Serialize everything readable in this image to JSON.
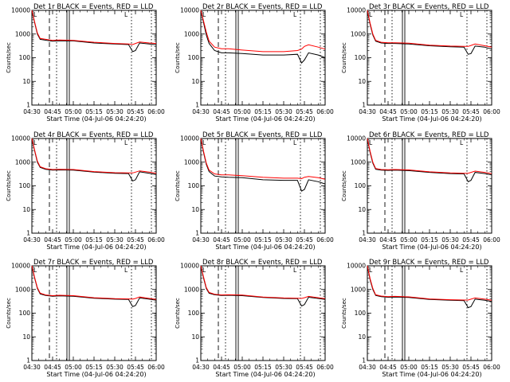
{
  "colors": {
    "events": "#000000",
    "lld": "#ff0000",
    "background": "#ffffff"
  },
  "chart_data": [
    {
      "type": "line",
      "title": "Det 1r BLACK = Events, RED = LLD",
      "xlabel": "Start Time (04-Jul-06 04:24:20)",
      "ylabel": "Counts/sec",
      "yscale": "log",
      "ylim": [
        1,
        10000
      ],
      "xlim": [
        "04:30",
        "06:00"
      ],
      "x_ticks": [
        "04:30",
        "04:45",
        "05:00",
        "05:15",
        "05:30",
        "05:45",
        "06:00"
      ],
      "y_ticks": [
        "1",
        "10",
        "100",
        "1000",
        "10000"
      ],
      "legend_marker": "L",
      "series": [
        {
          "name": "Events",
          "x": [
            "04:30",
            "04:32",
            "04:34",
            "04:36",
            "04:40",
            "04:45",
            "04:50",
            "05:00",
            "05:15",
            "05:30",
            "05:40",
            "05:43",
            "05:45",
            "05:48",
            "05:55",
            "06:00"
          ],
          "values": [
            10000,
            3000,
            1000,
            600,
            550,
            500,
            520,
            510,
            420,
            380,
            360,
            180,
            200,
            420,
            380,
            350
          ]
        },
        {
          "name": "LLD",
          "x": [
            "04:30",
            "04:32",
            "04:34",
            "04:36",
            "04:40",
            "04:45",
            "04:50",
            "05:00",
            "05:15",
            "05:30",
            "05:40",
            "05:43",
            "05:45",
            "05:48",
            "05:55",
            "06:00"
          ],
          "values": [
            10000,
            3200,
            1100,
            650,
            600,
            540,
            560,
            540,
            450,
            400,
            380,
            360,
            400,
            460,
            420,
            400
          ]
        }
      ]
    },
    {
      "type": "line",
      "title": "Det 2r BLACK = Events, RED = LLD",
      "xlabel": "Start Time (04-Jul-06 04:24:20)",
      "ylabel": "Counts/sec",
      "yscale": "log",
      "ylim": [
        1,
        10000
      ],
      "xlim": [
        "04:30",
        "06:00"
      ],
      "x_ticks": [
        "04:30",
        "04:45",
        "05:00",
        "05:15",
        "05:30",
        "05:45",
        "06:00"
      ],
      "y_ticks": [
        "1",
        "10",
        "100",
        "1000",
        "10000"
      ],
      "legend_marker": "L",
      "series": [
        {
          "name": "Events",
          "x": [
            "04:30",
            "04:32",
            "04:34",
            "04:36",
            "04:40",
            "04:45",
            "04:50",
            "05:00",
            "05:15",
            "05:30",
            "05:40",
            "05:43",
            "05:45",
            "05:48",
            "05:55",
            "06:00"
          ],
          "values": [
            10000,
            3000,
            900,
            400,
            200,
            160,
            160,
            150,
            130,
            130,
            140,
            60,
            80,
            160,
            130,
            100
          ]
        },
        {
          "name": "LLD",
          "x": [
            "04:30",
            "04:32",
            "04:34",
            "04:36",
            "04:40",
            "04:45",
            "04:50",
            "05:00",
            "05:15",
            "05:30",
            "05:40",
            "05:43",
            "05:45",
            "05:48",
            "05:55",
            "06:00"
          ],
          "values": [
            10000,
            3500,
            1200,
            500,
            280,
            240,
            240,
            210,
            180,
            180,
            200,
            230,
            300,
            350,
            280,
            230
          ]
        }
      ]
    },
    {
      "type": "line",
      "title": "Det 3r BLACK = Events, RED = LLD",
      "xlabel": "Start Time (04-Jul-06 04:24:20)",
      "ylabel": "Counts/sec",
      "yscale": "log",
      "ylim": [
        1,
        10000
      ],
      "xlim": [
        "04:30",
        "06:00"
      ],
      "x_ticks": [
        "04:30",
        "04:45",
        "05:00",
        "05:15",
        "05:30",
        "05:45",
        "06:00"
      ],
      "y_ticks": [
        "1",
        "10",
        "100",
        "1000",
        "10000"
      ],
      "legend_marker": "L",
      "series": [
        {
          "name": "Events",
          "x": [
            "04:30",
            "04:32",
            "04:34",
            "04:36",
            "04:40",
            "04:45",
            "04:50",
            "05:00",
            "05:15",
            "05:30",
            "05:40",
            "05:43",
            "05:45",
            "05:48",
            "05:55",
            "06:00"
          ],
          "values": [
            10000,
            2500,
            900,
            500,
            420,
            400,
            400,
            380,
            320,
            290,
            280,
            140,
            150,
            310,
            280,
            230
          ]
        },
        {
          "name": "LLD",
          "x": [
            "04:30",
            "04:32",
            "04:34",
            "04:36",
            "04:40",
            "04:45",
            "04:50",
            "05:00",
            "05:15",
            "05:30",
            "05:40",
            "05:43",
            "05:45",
            "05:48",
            "05:55",
            "06:00"
          ],
          "values": [
            10000,
            2800,
            1000,
            540,
            450,
            430,
            430,
            410,
            340,
            310,
            300,
            300,
            330,
            380,
            320,
            280
          ]
        }
      ]
    },
    {
      "type": "line",
      "title": "Det 4r BLACK = Events, RED = LLD",
      "xlabel": "Start Time (04-Jul-06 04:24:20)",
      "ylabel": "Counts/sec",
      "yscale": "log",
      "ylim": [
        1,
        10000
      ],
      "xlim": [
        "04:30",
        "06:00"
      ],
      "x_ticks": [
        "04:30",
        "04:45",
        "05:00",
        "05:15",
        "05:30",
        "05:45",
        "06:00"
      ],
      "y_ticks": [
        "1",
        "10",
        "100",
        "1000",
        "10000"
      ],
      "legend_marker": "L",
      "series": [
        {
          "name": "Events",
          "x": [
            "04:30",
            "04:32",
            "04:34",
            "04:36",
            "04:40",
            "04:45",
            "04:50",
            "05:00",
            "05:15",
            "05:30",
            "05:40",
            "05:43",
            "05:45",
            "05:48",
            "05:55",
            "06:00"
          ],
          "values": [
            10000,
            3000,
            1000,
            600,
            500,
            460,
            470,
            460,
            380,
            340,
            330,
            160,
            180,
            390,
            340,
            300
          ]
        },
        {
          "name": "LLD",
          "x": [
            "04:30",
            "04:32",
            "04:34",
            "04:36",
            "04:40",
            "04:45",
            "04:50",
            "05:00",
            "05:15",
            "05:30",
            "05:40",
            "05:43",
            "05:45",
            "05:48",
            "05:55",
            "06:00"
          ],
          "values": [
            10000,
            3200,
            1100,
            640,
            530,
            490,
            500,
            490,
            400,
            360,
            350,
            350,
            380,
            430,
            380,
            340
          ]
        }
      ]
    },
    {
      "type": "line",
      "title": "Det 5r BLACK = Events, RED = LLD",
      "xlabel": "Start Time (04-Jul-06 04:24:20)",
      "ylabel": "Counts/sec",
      "yscale": "log",
      "ylim": [
        1,
        10000
      ],
      "xlim": [
        "04:30",
        "06:00"
      ],
      "x_ticks": [
        "04:30",
        "04:45",
        "05:00",
        "05:15",
        "05:30",
        "05:45",
        "06:00"
      ],
      "y_ticks": [
        "1",
        "10",
        "100",
        "1000",
        "10000"
      ],
      "legend_marker": "L",
      "series": [
        {
          "name": "Events",
          "x": [
            "04:30",
            "04:32",
            "04:34",
            "04:36",
            "04:40",
            "04:45",
            "04:50",
            "05:00",
            "05:15",
            "05:30",
            "05:40",
            "05:43",
            "05:45",
            "05:48",
            "05:55",
            "06:00"
          ],
          "values": [
            10000,
            2500,
            800,
            400,
            260,
            240,
            230,
            220,
            180,
            170,
            170,
            60,
            70,
            180,
            150,
            120
          ]
        },
        {
          "name": "LLD",
          "x": [
            "04:30",
            "04:32",
            "04:34",
            "04:36",
            "04:40",
            "04:45",
            "04:50",
            "05:00",
            "05:15",
            "05:30",
            "05:40",
            "05:43",
            "05:45",
            "05:48",
            "05:55",
            "06:00"
          ],
          "values": [
            10000,
            2800,
            900,
            460,
            320,
            290,
            290,
            270,
            230,
            210,
            210,
            200,
            230,
            250,
            220,
            190
          ]
        }
      ]
    },
    {
      "type": "line",
      "title": "Det 6r BLACK = Events, RED = LLD",
      "xlabel": "Start Time (04-Jul-06 04:24:20)",
      "ylabel": "Counts/sec",
      "yscale": "log",
      "ylim": [
        1,
        10000
      ],
      "xlim": [
        "04:30",
        "06:00"
      ],
      "x_ticks": [
        "04:30",
        "04:45",
        "05:00",
        "05:15",
        "05:30",
        "05:45",
        "06:00"
      ],
      "y_ticks": [
        "1",
        "10",
        "100",
        "1000",
        "10000"
      ],
      "legend_marker": "L",
      "series": [
        {
          "name": "Events",
          "x": [
            "04:30",
            "04:32",
            "04:34",
            "04:36",
            "04:40",
            "04:45",
            "04:50",
            "05:00",
            "05:15",
            "05:30",
            "05:40",
            "05:43",
            "05:45",
            "05:48",
            "05:55",
            "06:00"
          ],
          "values": [
            10000,
            2500,
            900,
            500,
            460,
            450,
            460,
            440,
            370,
            330,
            320,
            150,
            170,
            370,
            330,
            290
          ]
        },
        {
          "name": "LLD",
          "x": [
            "04:30",
            "04:32",
            "04:34",
            "04:36",
            "04:40",
            "04:45",
            "04:50",
            "05:00",
            "05:15",
            "05:30",
            "05:40",
            "05:43",
            "05:45",
            "05:48",
            "05:55",
            "06:00"
          ],
          "values": [
            10000,
            2800,
            1000,
            540,
            490,
            480,
            490,
            470,
            390,
            350,
            340,
            340,
            370,
            420,
            370,
            330
          ]
        }
      ]
    },
    {
      "type": "line",
      "title": "Det 7r BLACK = Events, RED = LLD",
      "xlabel": "Start Time (04-Jul-06 04:24:20)",
      "ylabel": "Counts/sec",
      "yscale": "log",
      "ylim": [
        1,
        10000
      ],
      "xlim": [
        "04:30",
        "06:00"
      ],
      "x_ticks": [
        "04:30",
        "04:45",
        "05:00",
        "05:15",
        "05:30",
        "05:45",
        "06:00"
      ],
      "y_ticks": [
        "1",
        "10",
        "100",
        "1000",
        "10000"
      ],
      "legend_marker": "L",
      "series": [
        {
          "name": "Events",
          "x": [
            "04:30",
            "04:32",
            "04:34",
            "04:36",
            "04:40",
            "04:45",
            "04:50",
            "05:00",
            "05:15",
            "05:30",
            "05:40",
            "05:43",
            "05:45",
            "05:48",
            "05:55",
            "06:00"
          ],
          "values": [
            10000,
            3000,
            1100,
            650,
            560,
            520,
            540,
            520,
            430,
            390,
            380,
            190,
            210,
            440,
            390,
            350
          ]
        },
        {
          "name": "LLD",
          "x": [
            "04:30",
            "04:32",
            "04:34",
            "04:36",
            "04:40",
            "04:45",
            "04:50",
            "05:00",
            "05:15",
            "05:30",
            "05:40",
            "05:43",
            "05:45",
            "05:48",
            "05:55",
            "06:00"
          ],
          "values": [
            10000,
            3200,
            1200,
            700,
            590,
            550,
            570,
            550,
            450,
            410,
            400,
            390,
            420,
            480,
            420,
            380
          ]
        }
      ]
    },
    {
      "type": "line",
      "title": "Det 8r BLACK = Events, RED = LLD",
      "xlabel": "Start Time (04-Jul-06 04:24:20)",
      "ylabel": "Counts/sec",
      "yscale": "log",
      "ylim": [
        1,
        10000
      ],
      "xlim": [
        "04:30",
        "06:00"
      ],
      "x_ticks": [
        "04:30",
        "04:45",
        "05:00",
        "05:15",
        "05:30",
        "05:45",
        "06:00"
      ],
      "y_ticks": [
        "1",
        "10",
        "100",
        "1000",
        "10000"
      ],
      "legend_marker": "L",
      "series": [
        {
          "name": "Events",
          "x": [
            "04:30",
            "04:32",
            "04:34",
            "04:36",
            "04:40",
            "04:45",
            "04:50",
            "05:00",
            "05:15",
            "05:30",
            "05:40",
            "05:43",
            "05:45",
            "05:48",
            "05:55",
            "06:00"
          ],
          "values": [
            10000,
            3000,
            1100,
            700,
            600,
            560,
            570,
            550,
            460,
            420,
            410,
            200,
            230,
            470,
            420,
            380
          ]
        },
        {
          "name": "LLD",
          "x": [
            "04:30",
            "04:32",
            "04:34",
            "04:36",
            "04:40",
            "04:45",
            "04:50",
            "05:00",
            "05:15",
            "05:30",
            "05:40",
            "05:43",
            "05:45",
            "05:48",
            "05:55",
            "06:00"
          ],
          "values": [
            10000,
            3300,
            1200,
            750,
            630,
            590,
            600,
            580,
            480,
            440,
            430,
            420,
            450,
            510,
            450,
            410
          ]
        }
      ]
    },
    {
      "type": "line",
      "title": "Det 9r BLACK = Events, RED = LLD",
      "xlabel": "Start Time (04-Jul-06 04:24:20)",
      "ylabel": "Counts/sec",
      "yscale": "log",
      "ylim": [
        1,
        10000
      ],
      "xlim": [
        "04:30",
        "06:00"
      ],
      "x_ticks": [
        "04:30",
        "04:45",
        "05:00",
        "05:15",
        "05:30",
        "05:45",
        "06:00"
      ],
      "y_ticks": [
        "1",
        "10",
        "100",
        "1000",
        "10000"
      ],
      "legend_marker": "L",
      "series": [
        {
          "name": "Events",
          "x": [
            "04:30",
            "04:32",
            "04:34",
            "04:36",
            "04:40",
            "04:45",
            "04:50",
            "05:00",
            "05:15",
            "05:30",
            "05:40",
            "05:43",
            "05:45",
            "05:48",
            "05:55",
            "06:00"
          ],
          "values": [
            10000,
            2500,
            1000,
            560,
            500,
            470,
            480,
            460,
            380,
            350,
            340,
            170,
            190,
            390,
            350,
            310
          ]
        },
        {
          "name": "LLD",
          "x": [
            "04:30",
            "04:32",
            "04:34",
            "04:36",
            "04:40",
            "04:45",
            "04:50",
            "05:00",
            "05:15",
            "05:30",
            "05:40",
            "05:43",
            "05:45",
            "05:48",
            "05:55",
            "06:00"
          ],
          "values": [
            10000,
            2800,
            1100,
            600,
            530,
            500,
            510,
            490,
            400,
            370,
            360,
            360,
            390,
            440,
            390,
            350
          ]
        }
      ]
    }
  ]
}
